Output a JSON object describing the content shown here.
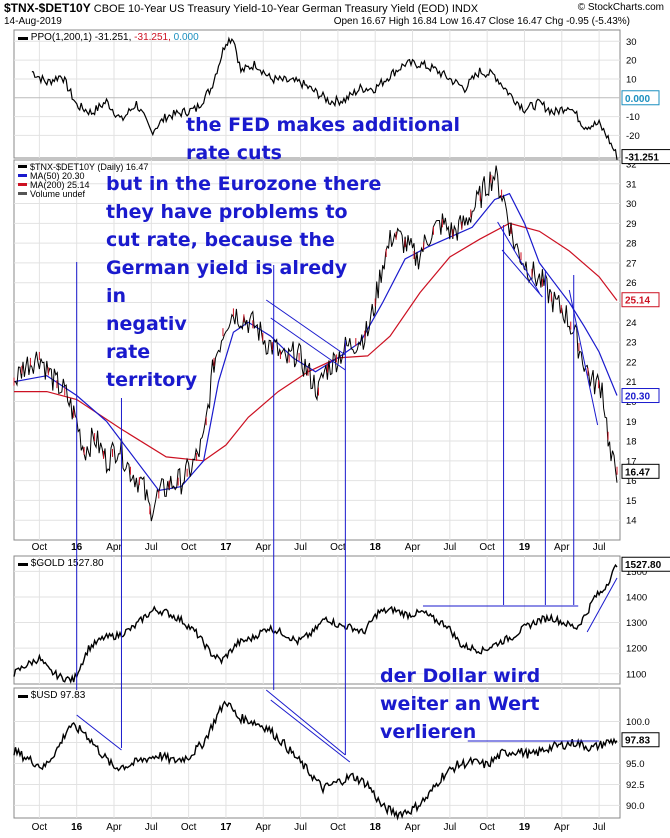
{
  "header": {
    "symbol": "$TNX-$DET10Y",
    "description": "CBOE 10-Year US Treasury Yield-10-Year German Treasury Yield (EOD)",
    "exchange": "INDX",
    "date": "14-Aug-2019",
    "brand": "© StockCharts.com",
    "ohlc": "Open 16.67  High 16.84  Low 16.47  Close 16.47  Chg -0.95 (-5.43%)"
  },
  "annotations": {
    "fed": [
      "the FED makes additional",
      "rate cuts"
    ],
    "eurozone": [
      "but in the Eurozone there",
      "they have problems to",
      "cut rate, because the",
      "German yield is alredy",
      "in",
      "negativ",
      "rate",
      "territory"
    ],
    "dollar": [
      "der Dollar wird",
      "weiter an Wert",
      "verlieren"
    ]
  },
  "colors": {
    "price": "#000000",
    "ma50": "#1a1acd",
    "ma200": "#cc1122",
    "annotation": "#1a1acd",
    "grid": "#e2e2e2",
    "ppo_neg": "#cc1122",
    "ppo_zero": "#1a8fbf"
  },
  "chart_data": [
    {
      "type": "line",
      "name": "PPO panel",
      "legend": [
        "PPO(1,200,1)",
        "-31.251,",
        "-31.251,",
        "0.000"
      ],
      "y_ticks": [
        30,
        20,
        10,
        -10,
        -20
      ],
      "ylim": [
        -32,
        36
      ],
      "last_values": {
        "ppo": "-31.251",
        "signal": "0.000"
      },
      "series": [
        {
          "name": "PPO",
          "t": [
            2015.7,
            2015.8,
            2015.9,
            2016.0,
            2016.1,
            2016.2,
            2016.3,
            2016.4,
            2016.5,
            2016.6,
            2016.7,
            2016.8,
            2016.9,
            2017.0,
            2017.05,
            2017.1,
            2017.2,
            2017.3,
            2017.4,
            2017.5,
            2017.6,
            2017.7,
            2017.8,
            2017.9,
            2018.0,
            2018.1,
            2018.2,
            2018.3,
            2018.4,
            2018.5,
            2018.6,
            2018.7,
            2018.8,
            2018.9,
            2019.0,
            2019.1,
            2019.2,
            2019.3,
            2019.4,
            2019.5,
            2019.55,
            2019.62
          ],
          "values": [
            14,
            8,
            12,
            -4,
            -8,
            -2,
            -12,
            -3,
            -18,
            -10,
            -8,
            -6,
            5,
            30,
            32,
            14,
            18,
            10,
            9,
            8,
            3,
            -2,
            -1,
            5,
            5,
            12,
            18,
            18,
            15,
            10,
            5,
            14,
            12,
            2,
            -6,
            -3,
            -8,
            -4,
            -15,
            -14,
            -20,
            -31
          ]
        }
      ]
    },
    {
      "type": "line",
      "name": "Main price panel",
      "legend": [
        "$TNX-$DET10Y (Daily) 16.47",
        "MA(50) 20.30",
        "MA(200) 25.14",
        "Volume undef"
      ],
      "y_ticks": [
        32,
        31,
        30,
        29,
        28,
        27,
        26,
        25,
        24,
        23,
        22,
        21,
        20,
        19,
        18,
        17,
        16,
        15,
        14
      ],
      "ylim": [
        13,
        32.2
      ],
      "x_ticks": [
        "Oct",
        "16",
        "Apr",
        "Jul",
        "Oct",
        "17",
        "Apr",
        "Jul",
        "Oct",
        "18",
        "Apr",
        "Jul",
        "Oct",
        "19",
        "Apr",
        "Jul"
      ],
      "last_values": {
        "price": "16.47",
        "ma50": "20.30",
        "ma200": "25.14"
      },
      "series": [
        {
          "name": "$TNX-$DET10Y",
          "t": [
            2015.58,
            2015.65,
            2015.75,
            2015.85,
            2015.92,
            2016.0,
            2016.05,
            2016.12,
            2016.2,
            2016.28,
            2016.36,
            2016.44,
            2016.49,
            2016.55,
            2016.62,
            2016.7,
            2016.78,
            2016.85,
            2016.92,
            2017.0,
            2017.05,
            2017.12,
            2017.2,
            2017.27,
            2017.33,
            2017.4,
            2017.47,
            2017.55,
            2017.62,
            2017.66,
            2017.72,
            2017.8,
            2017.87,
            2017.95,
            2018.0,
            2018.05,
            2018.12,
            2018.2,
            2018.28,
            2018.37,
            2018.45,
            2018.52,
            2018.6,
            2018.68,
            2018.75,
            2018.8,
            2018.87,
            2018.93,
            2019.0,
            2019.05,
            2019.12,
            2019.2,
            2019.27,
            2019.33,
            2019.4,
            2019.45,
            2019.52,
            2019.58,
            2019.62
          ],
          "values": [
            21.0,
            21.8,
            22.3,
            21.0,
            20.5,
            19.0,
            17.5,
            18.2,
            17.0,
            17.8,
            16.5,
            15.8,
            14.5,
            15.3,
            15.8,
            16.0,
            16.8,
            18.0,
            22.0,
            24.0,
            24.5,
            24.2,
            23.8,
            23.0,
            22.7,
            22.0,
            22.5,
            21.5,
            20.5,
            21.5,
            22.0,
            22.7,
            23.0,
            23.5,
            25.0,
            27.0,
            28.5,
            28.0,
            27.2,
            28.5,
            29.0,
            28.5,
            29.0,
            30.0,
            31.0,
            31.5,
            30.0,
            28.0,
            27.0,
            26.5,
            26.0,
            25.0,
            24.5,
            23.5,
            22.0,
            21.0,
            20.8,
            17.0,
            16.5
          ]
        },
        {
          "name": "MA(50)",
          "t": [
            2015.58,
            2015.8,
            2016.0,
            2016.2,
            2016.4,
            2016.55,
            2016.7,
            2016.85,
            2016.95,
            2017.05,
            2017.15,
            2017.3,
            2017.45,
            2017.6,
            2017.75,
            2017.9,
            2018.05,
            2018.2,
            2018.35,
            2018.5,
            2018.65,
            2018.8,
            2018.9,
            2019.0,
            2019.1,
            2019.2,
            2019.3,
            2019.4,
            2019.5,
            2019.62
          ],
          "values": [
            21.0,
            21.3,
            20.3,
            19.0,
            17.0,
            15.5,
            15.7,
            17.0,
            21.0,
            23.5,
            24.0,
            23.3,
            22.2,
            21.5,
            22.2,
            23.0,
            25.0,
            27.2,
            27.8,
            28.3,
            28.8,
            30.2,
            30.5,
            29.0,
            27.0,
            26.0,
            25.0,
            23.8,
            22.5,
            20.3
          ]
        },
        {
          "name": "MA(200)",
          "t": [
            2015.58,
            2015.8,
            2016.0,
            2016.3,
            2016.6,
            2016.85,
            2017.0,
            2017.15,
            2017.35,
            2017.55,
            2017.75,
            2017.95,
            2018.1,
            2018.3,
            2018.5,
            2018.7,
            2018.9,
            2019.1,
            2019.3,
            2019.5,
            2019.62
          ],
          "values": [
            20.5,
            20.5,
            20.1,
            18.6,
            17.2,
            17.0,
            17.8,
            19.2,
            20.5,
            21.5,
            22.2,
            22.3,
            23.3,
            25.5,
            27.3,
            28.2,
            29.0,
            28.6,
            27.6,
            26.3,
            25.1
          ]
        }
      ]
    },
    {
      "type": "line",
      "name": "Gold panel",
      "legend": [
        "$GOLD 1527.80"
      ],
      "y_ticks": [
        1500,
        1400,
        1300,
        1200,
        1100
      ],
      "ylim": [
        1060,
        1560
      ],
      "last_values": {
        "price": "1527.80"
      },
      "series": [
        {
          "name": "$GOLD",
          "t": [
            2015.58,
            2015.65,
            2015.75,
            2015.82,
            2015.9,
            2015.98,
            2016.08,
            2016.18,
            2016.28,
            2016.38,
            2016.45,
            2016.52,
            2016.6,
            2016.7,
            2016.8,
            2016.9,
            2016.97,
            2017.08,
            2017.18,
            2017.28,
            2017.38,
            2017.48,
            2017.58,
            2017.67,
            2017.75,
            2017.85,
            2017.92,
            2018.02,
            2018.12,
            2018.22,
            2018.32,
            2018.4,
            2018.48,
            2018.58,
            2018.65,
            2018.72,
            2018.82,
            2018.92,
            2019.0,
            2019.1,
            2019.18,
            2019.28,
            2019.35,
            2019.42,
            2019.47,
            2019.52,
            2019.58,
            2019.62
          ],
          "values": [
            1100,
            1130,
            1160,
            1110,
            1085,
            1075,
            1200,
            1240,
            1250,
            1280,
            1320,
            1350,
            1340,
            1310,
            1260,
            1180,
            1150,
            1220,
            1240,
            1280,
            1260,
            1225,
            1260,
            1320,
            1290,
            1280,
            1260,
            1340,
            1350,
            1330,
            1340,
            1310,
            1290,
            1210,
            1200,
            1190,
            1220,
            1245,
            1280,
            1310,
            1320,
            1295,
            1280,
            1340,
            1400,
            1420,
            1480,
            1528
          ]
        }
      ]
    },
    {
      "type": "line",
      "name": "USD panel",
      "legend": [
        "$USD 97.83"
      ],
      "y_ticks": [
        100.0,
        97.5,
        95.0,
        92.5,
        90.0
      ],
      "ylim": [
        88.5,
        104
      ],
      "last_values": {
        "price": "97.83"
      },
      "series": [
        {
          "name": "$USD",
          "t": [
            2015.58,
            2015.68,
            2015.78,
            2015.88,
            2015.95,
            2016.05,
            2016.15,
            2016.25,
            2016.35,
            2016.45,
            2016.55,
            2016.65,
            2016.75,
            2016.85,
            2016.95,
            2017.0,
            2017.08,
            2017.18,
            2017.28,
            2017.38,
            2017.48,
            2017.58,
            2017.65,
            2017.75,
            2017.85,
            2017.95,
            2018.05,
            2018.15,
            2018.25,
            2018.35,
            2018.45,
            2018.55,
            2018.65,
            2018.75,
            2018.85,
            2018.95,
            2019.05,
            2019.15,
            2019.25,
            2019.35,
            2019.45,
            2019.55,
            2019.62
          ],
          "values": [
            96.5,
            95.5,
            94.5,
            97.0,
            99.5,
            98.8,
            96.5,
            94.5,
            94.8,
            95.5,
            96.0,
            95.3,
            95.8,
            97.5,
            101.0,
            102.5,
            100.5,
            100.0,
            99.2,
            97.5,
            95.5,
            93.5,
            92.0,
            92.8,
            93.5,
            92.5,
            89.8,
            89.0,
            89.5,
            91.0,
            93.5,
            94.8,
            95.2,
            94.8,
            96.2,
            96.5,
            96.0,
            96.8,
            97.2,
            97.5,
            96.8,
            97.5,
            97.8
          ]
        }
      ]
    }
  ]
}
